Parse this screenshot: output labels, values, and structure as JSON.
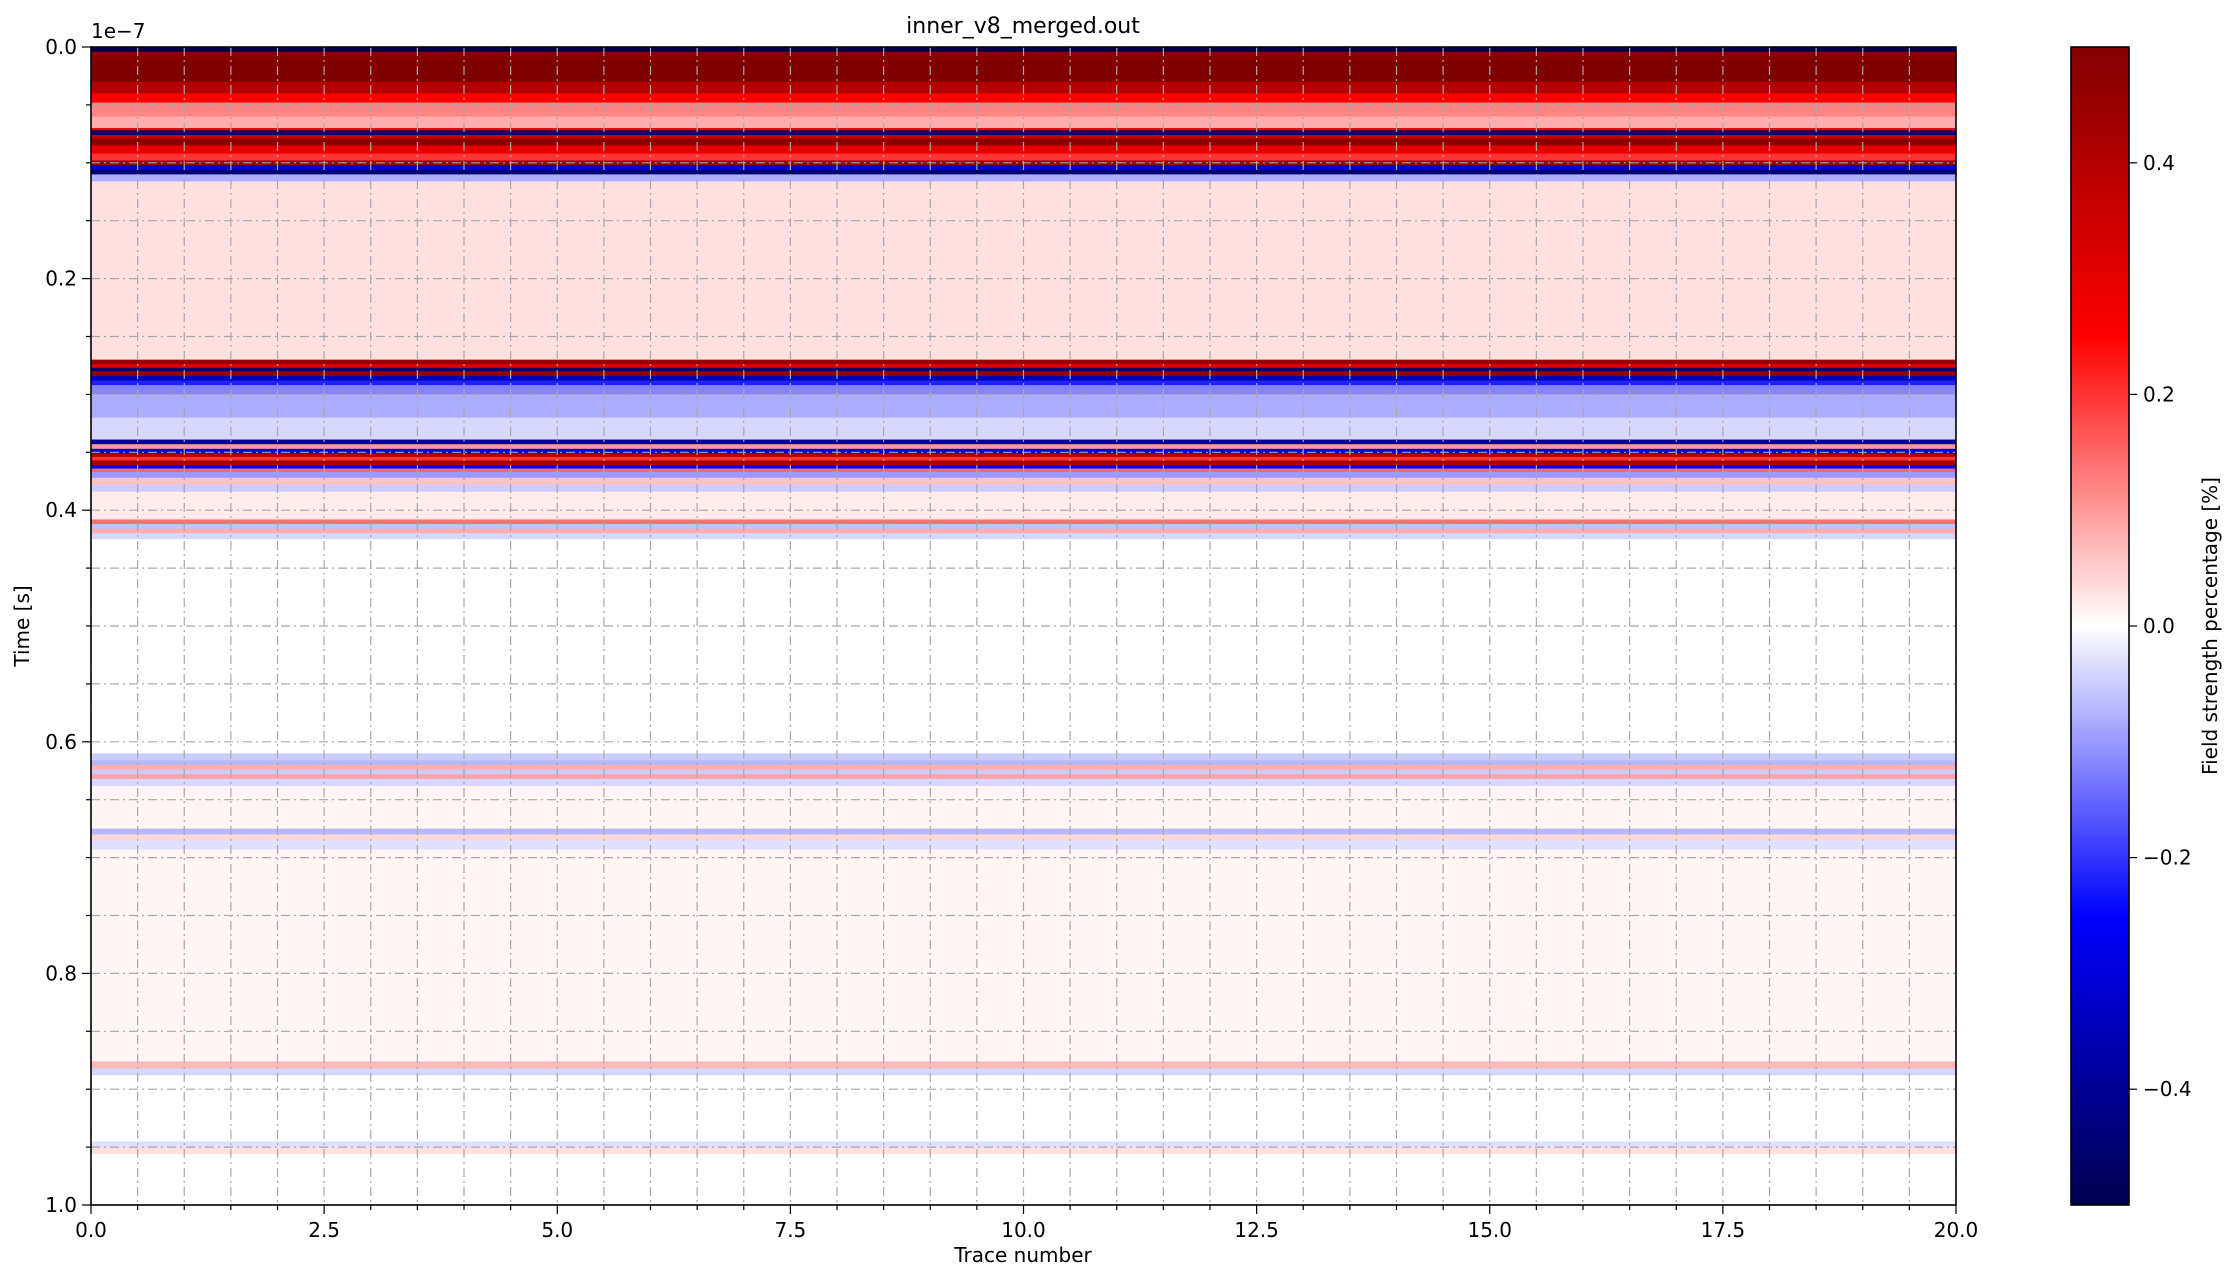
{
  "chart_data": {
    "type": "heatmap",
    "title": "inner_v8_merged.out",
    "xlabel": "Trace number",
    "ylabel": "Time [s]",
    "y_offset_label": "1e−7",
    "xlim": [
      0.0,
      20.0
    ],
    "ylim": [
      1.0,
      0.0
    ],
    "y_inverted": true,
    "grid": true,
    "grid_style": "dash-dot gray, major and minor",
    "x_ticks": [
      "0.0",
      "2.5",
      "5.0",
      "7.5",
      "10.0",
      "12.5",
      "15.0",
      "17.5",
      "20.0"
    ],
    "y_ticks": [
      "0.0",
      "0.2",
      "0.4",
      "0.6",
      "0.8",
      "1.0"
    ],
    "colormap": "seismic",
    "colorbar": {
      "label": "Field strength percentage [%]",
      "range": [
        -0.5,
        0.5
      ],
      "ticks": [
        "0.4",
        "0.2",
        "0.0",
        "−0.2",
        "−0.4"
      ],
      "tick_values": [
        0.4,
        0.2,
        0.0,
        -0.2,
        -0.4
      ]
    },
    "bands": [
      {
        "t0": 0.0,
        "t1": 0.004,
        "v": -0.5
      },
      {
        "t0": 0.004,
        "t1": 0.01,
        "v": 0.48
      },
      {
        "t0": 0.01,
        "t1": 0.03,
        "v": 0.5
      },
      {
        "t0": 0.03,
        "t1": 0.04,
        "v": 0.4
      },
      {
        "t0": 0.04,
        "t1": 0.048,
        "v": 0.25
      },
      {
        "t0": 0.048,
        "t1": 0.06,
        "v": 0.12
      },
      {
        "t0": 0.06,
        "t1": 0.07,
        "v": 0.08
      },
      {
        "t0": 0.07,
        "t1": 0.072,
        "v": 0.3
      },
      {
        "t0": 0.072,
        "t1": 0.076,
        "v": -0.45
      },
      {
        "t0": 0.076,
        "t1": 0.079,
        "v": 0.35
      },
      {
        "t0": 0.079,
        "t1": 0.085,
        "v": 0.48
      },
      {
        "t0": 0.085,
        "t1": 0.092,
        "v": 0.3
      },
      {
        "t0": 0.092,
        "t1": 0.098,
        "v": 0.2
      },
      {
        "t0": 0.098,
        "t1": 0.102,
        "v": 0.45
      },
      {
        "t0": 0.102,
        "t1": 0.106,
        "v": -0.3
      },
      {
        "t0": 0.106,
        "t1": 0.11,
        "v": -0.45
      },
      {
        "t0": 0.11,
        "t1": 0.116,
        "v": -0.08
      },
      {
        "t0": 0.116,
        "t1": 0.27,
        "v": 0.03
      },
      {
        "t0": 0.27,
        "t1": 0.274,
        "v": 0.45
      },
      {
        "t0": 0.274,
        "t1": 0.277,
        "v": 0.3
      },
      {
        "t0": 0.277,
        "t1": 0.28,
        "v": -0.45
      },
      {
        "t0": 0.28,
        "t1": 0.284,
        "v": 0.45
      },
      {
        "t0": 0.284,
        "t1": 0.288,
        "v": -0.35
      },
      {
        "t0": 0.288,
        "t1": 0.292,
        "v": -0.22
      },
      {
        "t0": 0.292,
        "t1": 0.3,
        "v": -0.12
      },
      {
        "t0": 0.3,
        "t1": 0.32,
        "v": -0.08
      },
      {
        "t0": 0.32,
        "t1": 0.339,
        "v": -0.04
      },
      {
        "t0": 0.339,
        "t1": 0.343,
        "v": -0.4
      },
      {
        "t0": 0.343,
        "t1": 0.347,
        "v": 0.1
      },
      {
        "t0": 0.347,
        "t1": 0.351,
        "v": -0.3
      },
      {
        "t0": 0.351,
        "t1": 0.354,
        "v": 0.4
      },
      {
        "t0": 0.354,
        "t1": 0.357,
        "v": 0.2
      },
      {
        "t0": 0.357,
        "t1": 0.361,
        "v": 0.42
      },
      {
        "t0": 0.361,
        "t1": 0.364,
        "v": -0.25
      },
      {
        "t0": 0.364,
        "t1": 0.367,
        "v": 0.15
      },
      {
        "t0": 0.367,
        "t1": 0.372,
        "v": -0.1
      },
      {
        "t0": 0.372,
        "t1": 0.378,
        "v": 0.06
      },
      {
        "t0": 0.378,
        "t1": 0.384,
        "v": -0.05
      },
      {
        "t0": 0.384,
        "t1": 0.408,
        "v": 0.02
      },
      {
        "t0": 0.408,
        "t1": 0.412,
        "v": 0.14
      },
      {
        "t0": 0.412,
        "t1": 0.416,
        "v": -0.06
      },
      {
        "t0": 0.416,
        "t1": 0.42,
        "v": 0.08
      },
      {
        "t0": 0.42,
        "t1": 0.425,
        "v": -0.04
      },
      {
        "t0": 0.425,
        "t1": 0.61,
        "v": 0.0
      },
      {
        "t0": 0.61,
        "t1": 0.616,
        "v": -0.05
      },
      {
        "t0": 0.616,
        "t1": 0.62,
        "v": -0.07
      },
      {
        "t0": 0.62,
        "t1": 0.624,
        "v": 0.08
      },
      {
        "t0": 0.624,
        "t1": 0.628,
        "v": -0.05
      },
      {
        "t0": 0.628,
        "t1": 0.632,
        "v": 0.09
      },
      {
        "t0": 0.632,
        "t1": 0.638,
        "v": -0.04
      },
      {
        "t0": 0.638,
        "t1": 0.675,
        "v": 0.01
      },
      {
        "t0": 0.675,
        "t1": 0.68,
        "v": -0.07
      },
      {
        "t0": 0.68,
        "t1": 0.685,
        "v": 0.04
      },
      {
        "t0": 0.685,
        "t1": 0.693,
        "v": -0.03
      },
      {
        "t0": 0.693,
        "t1": 0.876,
        "v": 0.01
      },
      {
        "t0": 0.876,
        "t1": 0.882,
        "v": 0.07
      },
      {
        "t0": 0.882,
        "t1": 0.888,
        "v": -0.04
      },
      {
        "t0": 0.888,
        "t1": 0.945,
        "v": 0.0
      },
      {
        "t0": 0.945,
        "t1": 0.95,
        "v": -0.03
      },
      {
        "t0": 0.95,
        "t1": 0.956,
        "v": 0.03
      },
      {
        "t0": 0.956,
        "t1": 1.0,
        "v": 0.0
      }
    ]
  }
}
